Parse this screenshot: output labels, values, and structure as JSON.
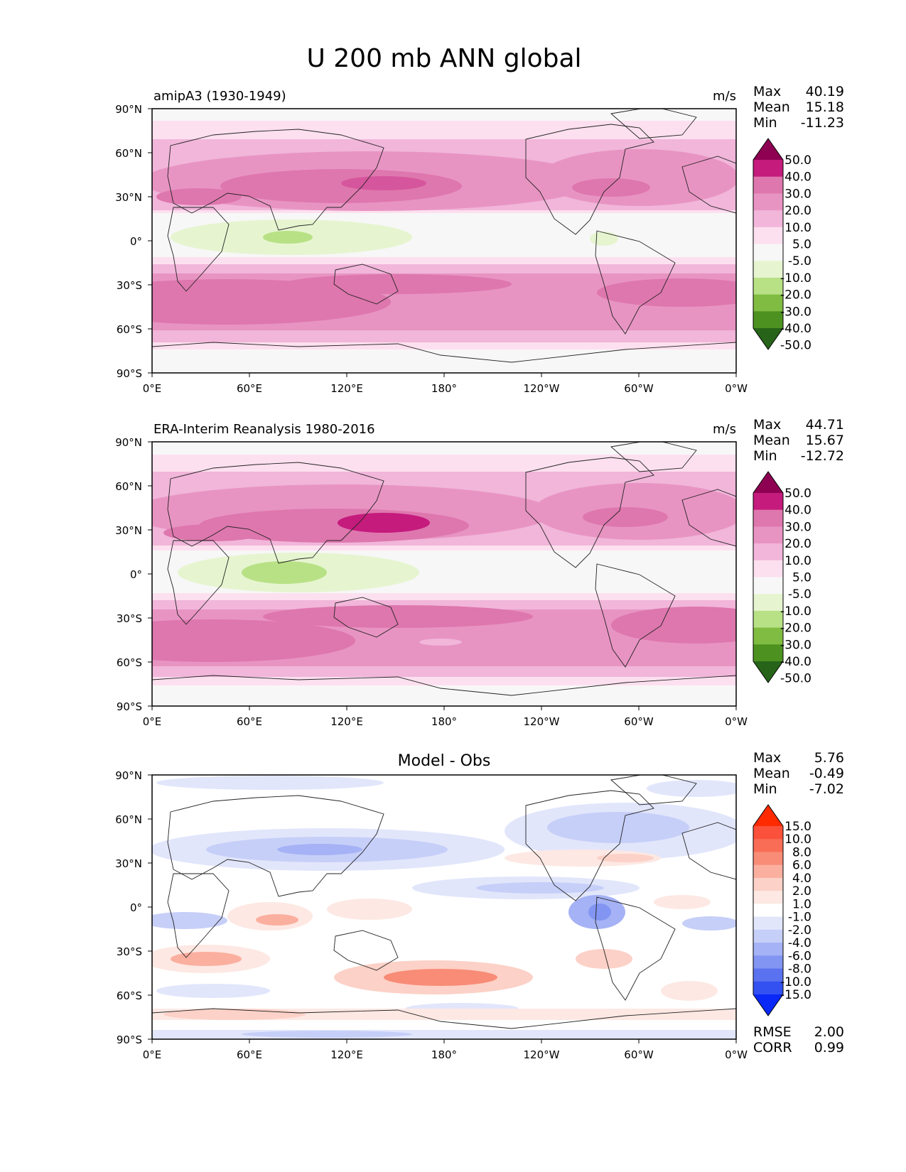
{
  "figure": {
    "title": "U 200 mb ANN global"
  },
  "chart_data": [
    {
      "type": "heatmap",
      "id": "test",
      "title_left": "amipA3 (1930-1949)",
      "title_center": "",
      "units": "m/s",
      "stats": {
        "max": {
          "label": "Max",
          "value": "40.19"
        },
        "mean": {
          "label": "Mean",
          "value": "15.18"
        },
        "min": {
          "label": "Min",
          "value": "-11.23"
        }
      },
      "colorbar": {
        "levels": [
          "50.0",
          "40.0",
          "30.0",
          "20.0",
          "10.0",
          "5.0",
          "-5.0",
          "-10.0",
          "-20.0",
          "-30.0",
          "-40.0",
          "-50.0"
        ],
        "colors": [
          "#8e0152",
          "#c51b7d",
          "#de77ae",
          "#e894c3",
          "#f1b6da",
          "#fde0ef",
          "#f7f7f7",
          "#e6f5d0",
          "#b8e186",
          "#7fbc41",
          "#4d9221",
          "#276419"
        ]
      },
      "x_ticks": [
        "0°E",
        "60°E",
        "120°E",
        "180°",
        "120°W",
        "60°W",
        "0°W"
      ],
      "y_ticks": [
        "90°N",
        "60°N",
        "30°N",
        "0°",
        "30°S",
        "60°S",
        "90°S"
      ],
      "xlim": [
        0,
        360
      ],
      "ylim": [
        -90,
        90
      ]
    },
    {
      "type": "heatmap",
      "id": "reference",
      "title_left": "ERA-Interim Reanalysis 1980-2016",
      "title_center": "",
      "units": "m/s",
      "stats": {
        "max": {
          "label": "Max",
          "value": "44.71"
        },
        "mean": {
          "label": "Mean",
          "value": "15.67"
        },
        "min": {
          "label": "Min",
          "value": "-12.72"
        }
      },
      "colorbar": {
        "levels": [
          "50.0",
          "40.0",
          "30.0",
          "20.0",
          "10.0",
          "5.0",
          "-5.0",
          "-10.0",
          "-20.0",
          "-30.0",
          "-40.0",
          "-50.0"
        ],
        "colors": [
          "#8e0152",
          "#c51b7d",
          "#de77ae",
          "#e894c3",
          "#f1b6da",
          "#fde0ef",
          "#f7f7f7",
          "#e6f5d0",
          "#b8e186",
          "#7fbc41",
          "#4d9221",
          "#276419"
        ]
      },
      "x_ticks": [
        "0°E",
        "60°E",
        "120°E",
        "180°",
        "120°W",
        "60°W",
        "0°W"
      ],
      "y_ticks": [
        "90°N",
        "60°N",
        "30°N",
        "0°",
        "30°S",
        "60°S",
        "90°S"
      ],
      "xlim": [
        0,
        360
      ],
      "ylim": [
        -90,
        90
      ]
    },
    {
      "type": "heatmap",
      "id": "difference",
      "title_left": "",
      "title_center": "Model - Obs",
      "units": "",
      "stats": {
        "max": {
          "label": "Max",
          "value": "5.76"
        },
        "mean": {
          "label": "Mean",
          "value": "-0.49"
        },
        "min": {
          "label": "Min",
          "value": "-7.02"
        }
      },
      "extra_stats": {
        "rmse": {
          "label": "RMSE",
          "value": "2.00"
        },
        "corr": {
          "label": "CORR",
          "value": "0.99"
        }
      },
      "colorbar": {
        "levels": [
          "15.0",
          "10.0",
          "8.0",
          "6.0",
          "4.0",
          "2.0",
          "1.0",
          "-1.0",
          "-2.0",
          "-4.0",
          "-6.0",
          "-8.0",
          "-10.0",
          "-15.0"
        ],
        "colors": [
          "#ff2a00",
          "#fb503a",
          "#f96d57",
          "#f88c77",
          "#fbaf9f",
          "#fcd1c7",
          "#fde8e3",
          "#ffffff",
          "#e2e6fb",
          "#c6cff8",
          "#a5b2f5",
          "#8295f2",
          "#5a72ef",
          "#3351f0",
          "#0a28f7"
        ]
      },
      "x_ticks": [
        "0°E",
        "60°E",
        "120°E",
        "180°",
        "120°W",
        "60°W",
        "0°W"
      ],
      "y_ticks": [
        "90°N",
        "60°N",
        "30°N",
        "0°",
        "30°S",
        "60°S",
        "90°S"
      ],
      "xlim": [
        0,
        360
      ],
      "ylim": [
        -90,
        90
      ]
    }
  ]
}
